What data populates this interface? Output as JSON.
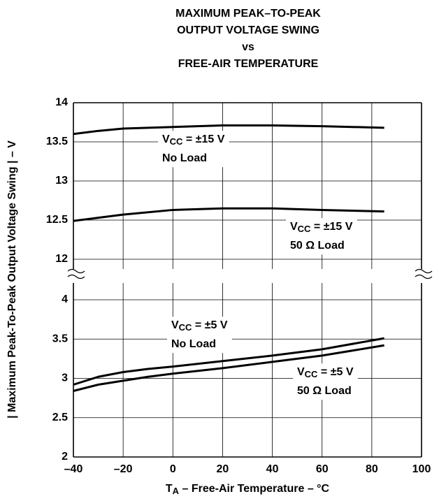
{
  "chart_data": [
    {
      "type": "line",
      "title": [
        "MAXIMUM PEAK–TO-PEAK",
        "OUTPUT VOLTAGE SWING",
        "vs",
        "FREE-AIR TEMPERATURE"
      ],
      "ylabel": "| Maximum Peak-To-Peak Output Voltage Swing | – V",
      "x": [
        -40,
        -30,
        -20,
        0,
        20,
        40,
        60,
        85
      ],
      "series": [
        {
          "color": "#000000",
          "values": [
            13.6,
            13.64,
            13.67,
            13.69,
            13.71,
            13.71,
            13.7,
            13.68
          ]
        },
        {
          "color": "#000000",
          "values": [
            12.49,
            12.53,
            12.57,
            12.63,
            12.65,
            12.65,
            12.63,
            12.61
          ]
        }
      ],
      "xlim": [
        -40,
        100
      ],
      "xticks": [
        -40,
        -20,
        0,
        20,
        40,
        60,
        80,
        100
      ],
      "ylim": [
        12,
        14
      ],
      "yticks": [
        12,
        12.5,
        13,
        13.5,
        14
      ],
      "grid": true,
      "annotations": [
        {
          "v": "V",
          "sub": "CC",
          "rest": " = ±15 V",
          "line2": "No Load"
        },
        {
          "v": "V",
          "sub": "CC",
          "rest": " = ±15 V",
          "line2": "50 Ω Load"
        }
      ]
    },
    {
      "type": "line",
      "xlabel": {
        "v": "T",
        "sub": "A",
        "rest": " – Free-Air Temperature – °C"
      },
      "x": [
        -40,
        -30,
        -20,
        -10,
        0,
        20,
        40,
        60,
        85
      ],
      "series": [
        {
          "color": "#000000",
          "values": [
            2.92,
            3.02,
            3.08,
            3.12,
            3.15,
            3.22,
            3.29,
            3.37,
            3.51
          ]
        },
        {
          "color": "#000000",
          "values": [
            2.84,
            2.92,
            2.97,
            3.02,
            3.06,
            3.13,
            3.21,
            3.29,
            3.42
          ]
        }
      ],
      "xlim": [
        -40,
        100
      ],
      "xticks": [
        {
          "value": -40,
          "label": "–40"
        },
        {
          "value": -20,
          "label": "–20"
        },
        0,
        20,
        40,
        60,
        80,
        100
      ],
      "ylim": [
        2,
        4
      ],
      "yticks": [
        2,
        2.5,
        3,
        3.5,
        4
      ],
      "grid": true,
      "annotations": [
        {
          "v": "V",
          "sub": "CC",
          "rest": " = ±5 V",
          "line2": "No Load"
        },
        {
          "v": "V",
          "sub": "CC",
          "rest": " = ±5 V",
          "line2": "50 Ω Load"
        }
      ]
    }
  ]
}
